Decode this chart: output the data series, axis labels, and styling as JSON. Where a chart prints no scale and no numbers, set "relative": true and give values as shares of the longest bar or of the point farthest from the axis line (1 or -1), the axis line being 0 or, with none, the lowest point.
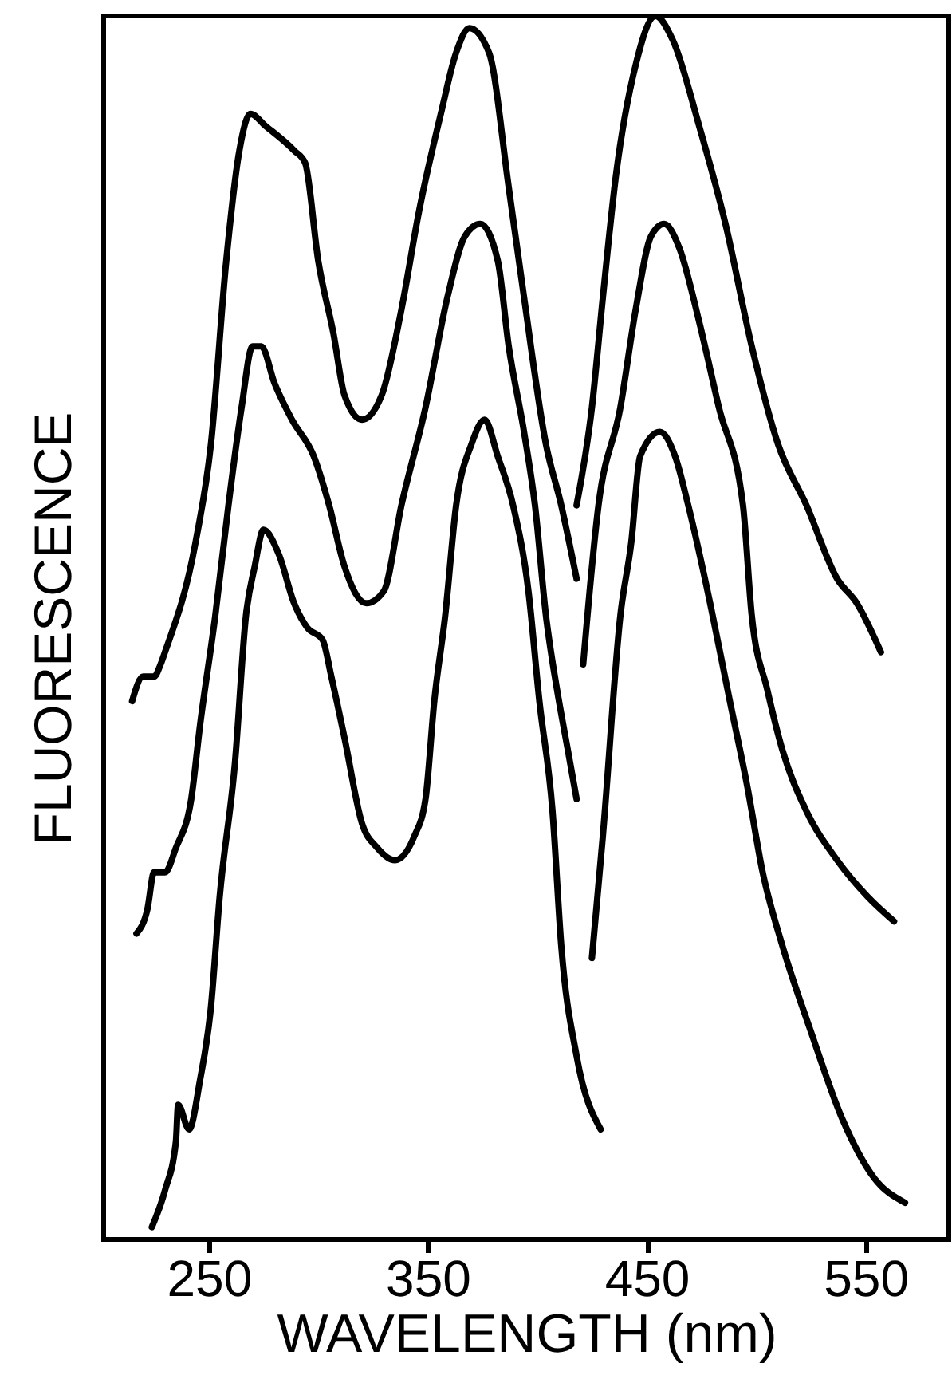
{
  "chart_data": {
    "type": "line",
    "xlabel": "WAVELENGTH (nm)",
    "ylabel": "FLUORESCENCE",
    "relative": true,
    "xlim": [
      202,
      588
    ],
    "xticks": [
      250,
      350,
      450,
      550
    ],
    "line_style": "solid",
    "series": [
      {
        "color": "#000000",
        "x": [
          215,
          220,
          225,
          228,
          230,
          244,
          251,
          258,
          264,
          269,
          276,
          289,
          294,
          300,
          307,
          312,
          320,
          329,
          338,
          346,
          356,
          363,
          369,
          378,
          387,
          394,
          404,
          411,
          418
        ],
        "values": [
          0.44,
          0.46,
          0.46,
          0.47,
          0.48,
          0.57,
          0.65,
          0.8,
          0.89,
          0.92,
          0.91,
          0.89,
          0.88,
          0.8,
          0.74,
          0.69,
          0.67,
          0.69,
          0.76,
          0.84,
          0.92,
          0.97,
          0.99,
          0.97,
          0.86,
          0.77,
          0.65,
          0.6,
          0.54
        ]
      },
      {
        "color": "#000000",
        "x": [
          217,
          222,
          225,
          230,
          235,
          242,
          246,
          253,
          259,
          265,
          270,
          274,
          280,
          288,
          298,
          305,
          312,
          322,
          330,
          338,
          349,
          359,
          367,
          374,
          382,
          387,
          394,
          399,
          404,
          409,
          414,
          418
        ],
        "values": [
          0.25,
          0.27,
          0.3,
          0.3,
          0.32,
          0.36,
          0.42,
          0.51,
          0.6,
          0.68,
          0.73,
          0.73,
          0.7,
          0.67,
          0.64,
          0.6,
          0.55,
          0.52,
          0.53,
          0.6,
          0.68,
          0.77,
          0.82,
          0.83,
          0.8,
          0.73,
          0.66,
          0.6,
          0.51,
          0.45,
          0.4,
          0.36
        ]
      },
      {
        "color": "#000000",
        "x": [
          224,
          230,
          235,
          236,
          241,
          246,
          251,
          255,
          262,
          267,
          271,
          275,
          282,
          289,
          295,
          302,
          306,
          312,
          320,
          327,
          335,
          344,
          349,
          353,
          358,
          363,
          370,
          376,
          382,
          389,
          396,
          401,
          407,
          411,
          418,
          429
        ],
        "values": [
          0.01,
          0.04,
          0.08,
          0.11,
          0.09,
          0.13,
          0.19,
          0.28,
          0.39,
          0.51,
          0.55,
          0.58,
          0.56,
          0.52,
          0.5,
          0.49,
          0.46,
          0.41,
          0.34,
          0.32,
          0.31,
          0.33,
          0.36,
          0.44,
          0.51,
          0.6,
          0.65,
          0.67,
          0.64,
          0.6,
          0.53,
          0.44,
          0.35,
          0.24,
          0.15,
          0.09
        ]
      },
      {
        "color": "#000000",
        "x": [
          418,
          425,
          430,
          436,
          445,
          454,
          462,
          474,
          486,
          498,
          510,
          523,
          537,
          546,
          557
        ],
        "values": [
          0.6,
          0.68,
          0.77,
          0.87,
          0.96,
          1.0,
          0.98,
          0.91,
          0.83,
          0.73,
          0.65,
          0.6,
          0.54,
          0.52,
          0.48
        ]
      },
      {
        "color": "#000000",
        "x": [
          421,
          428,
          438,
          445,
          452,
          458,
          465,
          474,
          483,
          494,
          498,
          505,
          512,
          523,
          537,
          551,
          563
        ],
        "values": [
          0.47,
          0.6,
          0.68,
          0.76,
          0.82,
          0.83,
          0.81,
          0.75,
          0.68,
          0.6,
          0.51,
          0.45,
          0.4,
          0.35,
          0.31,
          0.28,
          0.26
        ]
      },
      {
        "color": "#000000",
        "x": [
          425,
          430,
          438,
          443,
          447,
          456,
          463,
          469,
          479,
          488,
          496,
          503,
          512,
          525,
          539,
          554,
          568
        ],
        "values": [
          0.23,
          0.33,
          0.51,
          0.57,
          0.64,
          0.66,
          0.64,
          0.6,
          0.52,
          0.44,
          0.37,
          0.3,
          0.24,
          0.17,
          0.1,
          0.05,
          0.03
        ]
      }
    ]
  }
}
